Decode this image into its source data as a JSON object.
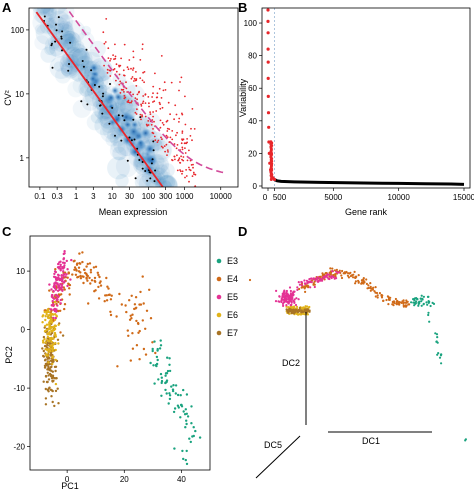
{
  "panels": {
    "A": "A",
    "B": "B",
    "C": "C",
    "D": "D"
  },
  "chart_data": [
    {
      "id": "A",
      "type": "scatter",
      "xlabel": "Mean expression",
      "ylabel": "CV²",
      "x_scale": "log",
      "y_scale": "log",
      "xlim": [
        0.05,
        30000
      ],
      "ylim": [
        0.35,
        220
      ],
      "x_ticks": [
        {
          "v": 0.1,
          "label": "0.1"
        },
        {
          "v": 0.3,
          "label": "0.3"
        },
        {
          "v": 1,
          "label": "1"
        },
        {
          "v": 3,
          "label": "3"
        },
        {
          "v": 10,
          "label": "10"
        },
        {
          "v": 30,
          "label": "30"
        },
        {
          "v": 100,
          "label": "100"
        },
        {
          "v": 300,
          "label": "300"
        },
        {
          "v": 1000,
          "label": "1000"
        },
        {
          "v": 10000,
          "label": "10000"
        }
      ],
      "y_ticks": [
        {
          "v": 1,
          "label": "1"
        },
        {
          "v": 10,
          "label": "10"
        },
        {
          "v": 100,
          "label": "100"
        }
      ],
      "series": [
        {
          "kind": "density",
          "color": "#2b7bba"
        },
        {
          "kind": "highly-variable-genes",
          "color": "#e8262b",
          "points": 260
        },
        {
          "kind": "other-genes",
          "color": "#000000",
          "points": 70
        },
        {
          "kind": "fit-line",
          "color": "#e8262b",
          "x": [
            0.08,
            250
          ],
          "y": [
            190,
            0.35
          ]
        },
        {
          "kind": "threshold-dashed",
          "color": "#d24a9a"
        }
      ]
    },
    {
      "id": "B",
      "type": "line",
      "xlabel": "Gene rank",
      "ylabel": "Variability",
      "xlim": [
        0,
        15000
      ],
      "ylim": [
        0,
        108
      ],
      "x_ticks": [
        {
          "v": 0,
          "label": "0"
        },
        {
          "v": 500,
          "label": "500"
        },
        {
          "v": 5000,
          "label": "5000"
        },
        {
          "v": 10000,
          "label": "10000"
        },
        {
          "v": 15000,
          "label": "15000"
        }
      ],
      "y_ticks": [
        {
          "v": 0,
          "label": "0"
        },
        {
          "v": 20,
          "label": "20"
        },
        {
          "v": 40,
          "label": "40"
        },
        {
          "v": 60,
          "label": "60"
        },
        {
          "v": 80,
          "label": "80"
        },
        {
          "v": 100,
          "label": "100"
        }
      ],
      "cutoff_rank": 500,
      "series": [
        {
          "kind": "top-ranked",
          "color": "#e8262b",
          "x": [
            1,
            3,
            5,
            8,
            12,
            18,
            25,
            35,
            50,
            70,
            100,
            140,
            200,
            280,
            380,
            500
          ],
          "y": [
            108,
            101,
            94,
            84,
            76,
            66,
            55,
            45,
            36,
            27,
            20,
            14,
            10,
            7,
            5,
            4
          ]
        },
        {
          "kind": "remaining",
          "color": "#000000",
          "x": [
            500,
            700,
            1000,
            2000,
            4000,
            6000,
            8000,
            10000,
            12000,
            14000,
            15000
          ],
          "y": [
            4,
            3.2,
            2.8,
            2.5,
            2.2,
            2.0,
            1.8,
            1.6,
            1.4,
            1.2,
            1.0
          ]
        }
      ]
    },
    {
      "id": "C",
      "type": "scatter",
      "xlabel": "PC1",
      "ylabel": "PC2",
      "xlim": [
        -13,
        50
      ],
      "ylim": [
        -24,
        16
      ],
      "x_ticks": [
        {
          "v": 0,
          "label": "0"
        },
        {
          "v": 20,
          "label": "20"
        },
        {
          "v": 40,
          "label": "40"
        }
      ],
      "y_ticks": [
        {
          "v": 10,
          "label": "10"
        },
        {
          "v": 0,
          "label": "0"
        },
        {
          "v": -10,
          "label": "-10"
        },
        {
          "v": -20,
          "label": "-20"
        }
      ],
      "legend_position": "right",
      "series": [
        {
          "name": "E3",
          "color": "#1aa37f"
        },
        {
          "name": "E4",
          "color": "#d06a18"
        },
        {
          "name": "E5",
          "color": "#e43294"
        },
        {
          "name": "E6",
          "color": "#e1b31a"
        },
        {
          "name": "E7",
          "color": "#a87425"
        }
      ]
    },
    {
      "id": "D",
      "type": "scatter",
      "axes": [
        "DC1",
        "DC2",
        "DC5"
      ],
      "series": [
        {
          "name": "E3",
          "color": "#1aa37f"
        },
        {
          "name": "E4",
          "color": "#d06a18"
        },
        {
          "name": "E5",
          "color": "#e43294"
        },
        {
          "name": "E6",
          "color": "#e1b31a"
        },
        {
          "name": "E7",
          "color": "#a87425"
        }
      ]
    }
  ]
}
